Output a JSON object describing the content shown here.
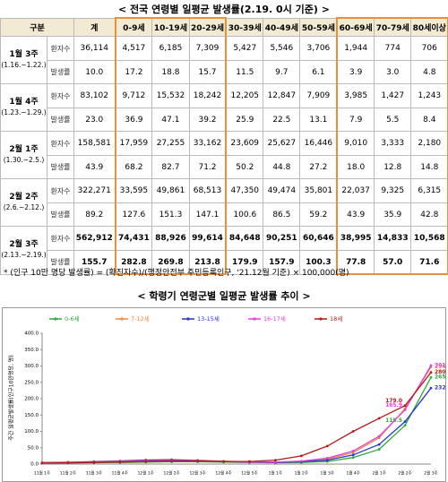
{
  "table_title": "< 전국 연령별 일평균 발생률(2.19. 0시 기준) >",
  "table": {
    "header": [
      "구분",
      "계",
      "0-9세",
      "10-19세",
      "20-29세",
      "30-39세",
      "40-49세",
      "50-59세",
      "60-69세",
      "70-79세",
      "80세이상"
    ],
    "groups": [
      {
        "label": "1월 3주",
        "period": "(1.16.~1.22.)",
        "rows": [
          {
            "label": "환자수",
            "cells": [
              "36,114",
              "4,517",
              "6,185",
              "7,309",
              "5,427",
              "5,546",
              "3,706",
              "1,944",
              "774",
              "706"
            ]
          },
          {
            "label": "발생률",
            "cells": [
              "10.0",
              "17.2",
              "18.8",
              "15.7",
              "11.5",
              "9.7",
              "6.1",
              "3.9",
              "3.0",
              "4.8"
            ]
          }
        ]
      },
      {
        "label": "1월 4주",
        "period": "(1.23.~1.29.)",
        "rows": [
          {
            "label": "환자수",
            "cells": [
              "83,102",
              "9,712",
              "15,532",
              "18,242",
              "12,205",
              "12,847",
              "7,909",
              "3,985",
              "1,427",
              "1,243"
            ]
          },
          {
            "label": "발생률",
            "cells": [
              "23.0",
              "36.9",
              "47.1",
              "39.2",
              "25.9",
              "22.5",
              "13.1",
              "7.9",
              "5.5",
              "8.4"
            ]
          }
        ]
      },
      {
        "label": "2월 1주",
        "period": "(1.30.~2.5.)",
        "rows": [
          {
            "label": "환자수",
            "cells": [
              "158,581",
              "17,959",
              "27,255",
              "33,162",
              "23,609",
              "25,627",
              "16,446",
              "9,010",
              "3,333",
              "2,180"
            ]
          },
          {
            "label": "발생률",
            "cells": [
              "43.9",
              "68.2",
              "82.7",
              "71.2",
              "50.2",
              "44.8",
              "27.2",
              "18.0",
              "12.8",
              "14.8"
            ]
          }
        ]
      },
      {
        "label": "2월 2주",
        "period": "(2.6.~2.12.)",
        "rows": [
          {
            "label": "환자수",
            "cells": [
              "322,271",
              "33,595",
              "49,861",
              "68,513",
              "47,350",
              "49,474",
              "35,801",
              "22,037",
              "9,325",
              "6,315"
            ]
          },
          {
            "label": "발생률",
            "cells": [
              "89.2",
              "127.6",
              "151.3",
              "147.1",
              "100.6",
              "86.5",
              "59.2",
              "43.9",
              "35.9",
              "42.8"
            ]
          }
        ]
      },
      {
        "label": "2월 3주",
        "period": "(2.13.~2.19.)",
        "rows": [
          {
            "label": "환자수",
            "cells": [
              "562,912",
              "74,431",
              "88,926",
              "99,614",
              "84,648",
              "90,251",
              "60,646",
              "38,995",
              "14,833",
              "10,568"
            ]
          },
          {
            "label": "발생률",
            "cells": [
              "155.7",
              "282.8",
              "269.8",
              "213.8",
              "179.9",
              "157.9",
              "100.3",
              "77.8",
              "57.0",
              "71.6"
            ]
          }
        ]
      }
    ]
  },
  "footnote": "* (인구 10만 명당 발생률) = (확진자수)/(행정안전부 주민등록인구, '21.12월 기준) × 100,000(명)",
  "chart_data": {
    "type": "line",
    "title": "< 학령기 연령군별 일평균 발생률 추이 >",
    "y_label": "주간 일평균발생률(인구10만명당, 명)",
    "categories": [
      "11월 1주",
      "11월 2주",
      "11월 3주",
      "11월 4주",
      "12월 1주",
      "12월 2주",
      "12월 3주",
      "12월 4주",
      "12월 5주",
      "1월 1주",
      "1월 2주",
      "1월 3주",
      "1월 4주",
      "2월 1주",
      "2월 2주",
      "2월 3주"
    ],
    "ylim": [
      0,
      400
    ],
    "yticks": [
      {
        "value": 0,
        "label": "0.0"
      },
      {
        "value": 50,
        "label": "50.0"
      },
      {
        "value": 100,
        "label": "100.0"
      },
      {
        "value": 150,
        "label": "150.0"
      },
      {
        "value": 200,
        "label": "200.0"
      },
      {
        "value": 250,
        "label": "250.0"
      },
      {
        "value": 300,
        "label": "300.0"
      },
      {
        "value": 350,
        "label": "350.0"
      },
      {
        "value": 400,
        "label": "400.0"
      }
    ],
    "series": [
      {
        "name": "0-6세",
        "color": "#2eaa3c",
        "values": [
          3,
          3,
          4,
          5,
          6,
          7,
          7,
          6,
          5,
          4,
          5,
          8,
          20,
          45,
          118.5,
          265.2
        ],
        "value_labels": [
          null,
          null,
          null,
          null,
          null,
          null,
          null,
          null,
          null,
          null,
          null,
          null,
          null,
          null,
          "118.5",
          "265.2"
        ]
      },
      {
        "name": "7-12세",
        "color": "#f08a3c",
        "values": [
          5,
          6,
          8,
          10,
          13,
          14,
          12,
          9,
          7,
          6,
          8,
          15,
          35,
          80,
          170,
          296.9
        ],
        "value_labels": [
          null,
          null,
          null,
          null,
          null,
          null,
          null,
          null,
          null,
          null,
          null,
          null,
          null,
          null,
          null,
          "296.9"
        ]
      },
      {
        "name": "13-15세",
        "color": "#2a36c8",
        "values": [
          4,
          5,
          7,
          9,
          12,
          13,
          11,
          8,
          6,
          5,
          7,
          12,
          28,
          60,
          130,
          232.4
        ],
        "value_labels": [
          null,
          null,
          null,
          null,
          null,
          null,
          null,
          null,
          null,
          null,
          null,
          null,
          null,
          null,
          null,
          "232.4"
        ]
      },
      {
        "name": "16-17세",
        "color": "#e040e0",
        "values": [
          4,
          5,
          6,
          8,
          10,
          11,
          10,
          8,
          6,
          6,
          9,
          18,
          40,
          85,
          165.9,
          301.5
        ],
        "value_labels": [
          null,
          null,
          null,
          null,
          null,
          null,
          null,
          null,
          null,
          null,
          null,
          null,
          null,
          null,
          "165.9",
          "301.5"
        ]
      },
      {
        "name": "18세",
        "color": "#b01c1c",
        "values": [
          3,
          4,
          5,
          6,
          8,
          9,
          9,
          8,
          8,
          12,
          25,
          55,
          100,
          140,
          179,
          280.3
        ],
        "value_labels": [
          null,
          null,
          null,
          null,
          null,
          null,
          null,
          null,
          null,
          null,
          null,
          null,
          null,
          null,
          "179.0",
          "280.3"
        ]
      }
    ]
  }
}
